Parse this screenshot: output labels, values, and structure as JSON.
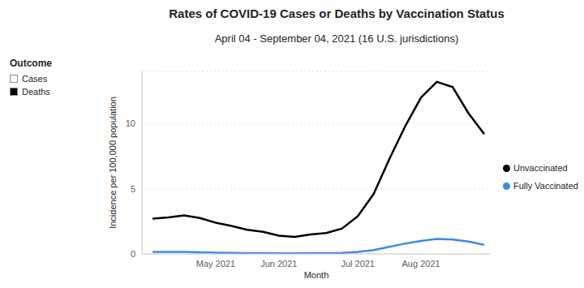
{
  "chart_data": {
    "type": "line",
    "title": "Rates of COVID-19 Cases or Deaths by Vaccination Status",
    "subtitle": "April 04 - September 04, 2021 (16 U.S. jurisdictions)",
    "x_label": "Month",
    "y_label": "Incidence per 100,000 population",
    "categories": [
      null,
      null,
      null,
      null,
      "May 2021",
      null,
      null,
      null,
      "Jun 2021",
      null,
      null,
      null,
      null,
      "Jul 2021",
      null,
      null,
      null,
      "Aug 2021",
      null,
      null,
      null,
      null
    ],
    "series": [
      {
        "name": "Unvaccinated",
        "color": "#000000",
        "values": [
          2.7,
          2.8,
          2.95,
          2.75,
          2.4,
          2.15,
          1.85,
          1.7,
          1.4,
          1.3,
          1.5,
          1.6,
          1.95,
          2.9,
          4.6,
          7.3,
          9.8,
          12.0,
          13.2,
          12.8,
          10.8,
          9.2
        ]
      },
      {
        "name": "Fully Vaccinated",
        "color": "#3b8beb",
        "values": [
          0.15,
          0.15,
          0.15,
          0.13,
          0.1,
          0.08,
          0.07,
          0.06,
          0.05,
          0.05,
          0.06,
          0.07,
          0.08,
          0.15,
          0.3,
          0.55,
          0.8,
          1.0,
          1.15,
          1.1,
          0.95,
          0.7
        ]
      }
    ],
    "ylim": [
      0,
      14
    ],
    "yticks": [
      0,
      5,
      10
    ],
    "grid": true,
    "legend": "right",
    "legend_title": "Outcome",
    "legend_items": [
      {
        "name": "Cases",
        "color": "#ffffff"
      },
      {
        "name": "Deaths",
        "color": "#000000"
      }
    ]
  }
}
